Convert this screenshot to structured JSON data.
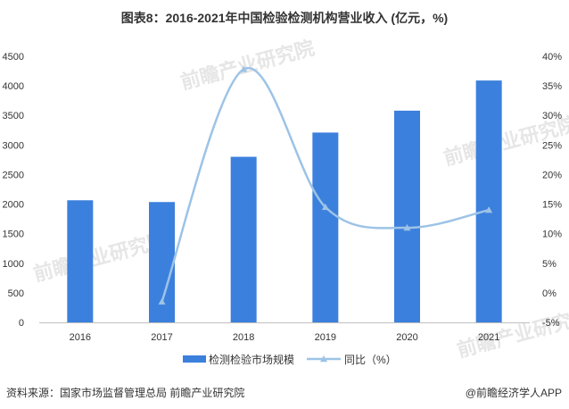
{
  "title": "图表8：2016-2021年中国检验检测机构营业收入 (亿元，%)",
  "chart_data": {
    "type": "bar",
    "categories": [
      "2016",
      "2017",
      "2018",
      "2019",
      "2020",
      "2021"
    ],
    "series": [
      {
        "name": "检测检验市场规模",
        "type": "bar",
        "axis": "left",
        "values": [
          2065,
          2035,
          2800,
          3210,
          3580,
          4090
        ]
      },
      {
        "name": "同比（%）",
        "type": "line",
        "axis": "right",
        "values": [
          null,
          -1.5,
          37.8,
          14.5,
          11.0,
          14.0
        ]
      }
    ],
    "y_left": {
      "ylim": [
        0,
        4500
      ],
      "ticks": [
        "0",
        "500",
        "1000",
        "1500",
        "2000",
        "2500",
        "3000",
        "3500",
        "4000",
        "4500"
      ]
    },
    "y_right": {
      "ylim": [
        -5,
        40
      ],
      "ticks": [
        "-5%",
        "0%",
        "5%",
        "10%",
        "15%",
        "20%",
        "25%",
        "30%",
        "35%",
        "40%"
      ]
    },
    "legend_position": "bottom",
    "grid": false,
    "colors": {
      "bar": "#3c80dd",
      "line": "#9dc3e6"
    }
  },
  "watermark": "前瞻产业研究院",
  "source": "资料来源：国家市场监督管理总局 前瞻产业研究院",
  "brand": "@前瞻经济学人APP"
}
